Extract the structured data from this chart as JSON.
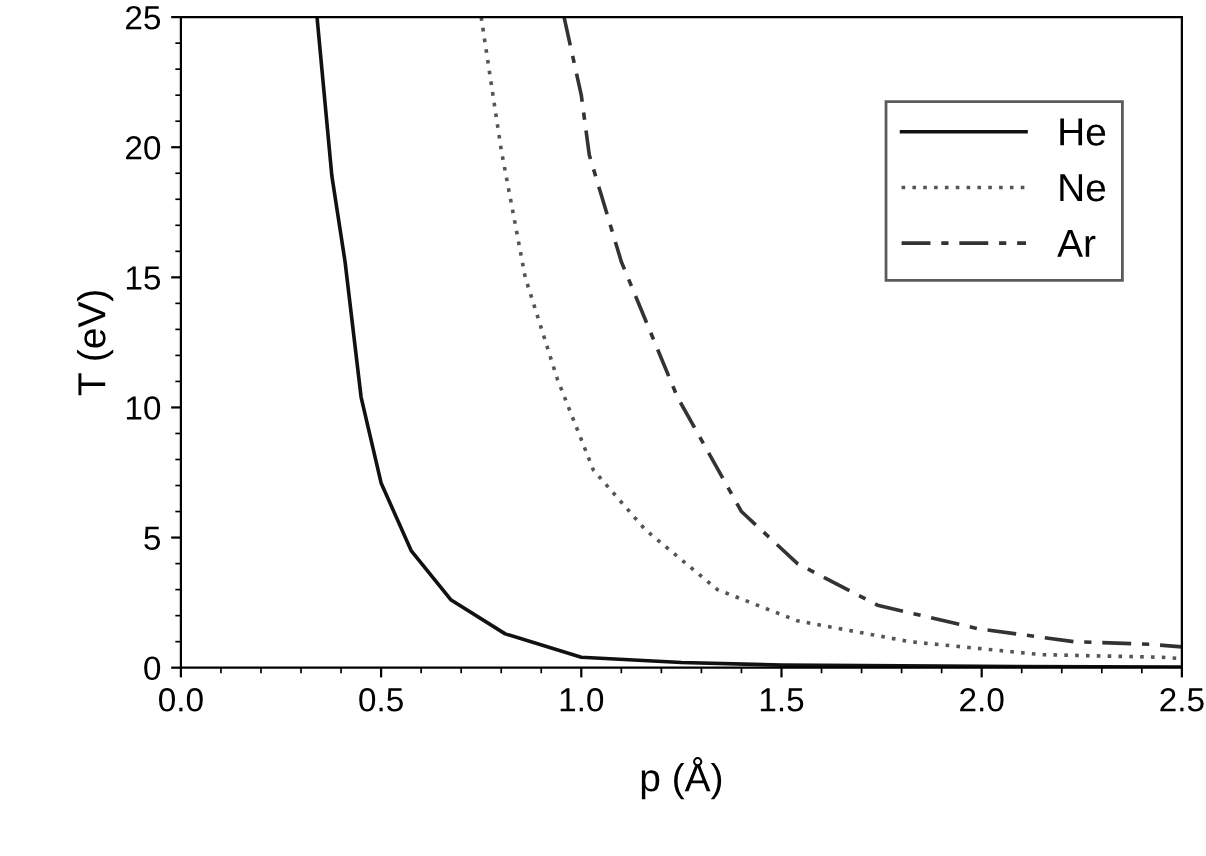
{
  "chart_data": {
    "type": "line",
    "xlabel": "p (Å)",
    "ylabel": "T (eV)",
    "xlim": [
      0,
      2.5
    ],
    "ylim": [
      0,
      25
    ],
    "xticks": [
      {
        "value": 0,
        "label": "0.0"
      },
      0.5,
      {
        "value": 1,
        "label": "1.0"
      },
      1.5,
      {
        "value": 2,
        "label": "2.0"
      },
      2.5
    ],
    "yticks": [
      0,
      5,
      10,
      15,
      20,
      25
    ],
    "grid": false,
    "legend": "top right",
    "marker": "none",
    "series": [
      {
        "name": "He",
        "color": "#111111",
        "line_style": "solid",
        "x": [
          0.34,
          0.377,
          0.41,
          0.45,
          0.5,
          0.575,
          0.675,
          0.81,
          1.0,
          1.25,
          1.5,
          2.0,
          2.5
        ],
        "values": [
          25,
          18.9,
          15.6,
          10.4,
          7.1,
          4.5,
          2.6,
          1.3,
          0.4,
          0.2,
          0.1,
          0.05,
          0.02
        ]
      },
      {
        "name": "Ne",
        "color": "#555555",
        "line_style": "dotted",
        "x": [
          0.75,
          0.8,
          0.86,
          0.94,
          1.03,
          1.16,
          1.34,
          1.54,
          1.82,
          2.15,
          2.45,
          2.5
        ],
        "values": [
          25,
          19.9,
          15.0,
          11.1,
          7.6,
          5.3,
          3.0,
          1.8,
          1.0,
          0.5,
          0.4,
          0.35
        ]
      },
      {
        "name": "Ar",
        "color": "#333333",
        "line_style": "dashed",
        "x": [
          0.957,
          1.0,
          1.02,
          1.1,
          1.24,
          1.4,
          1.54,
          1.74,
          1.99,
          2.23,
          2.42,
          2.5
        ],
        "values": [
          25,
          22.0,
          19.7,
          15.6,
          10.4,
          6.0,
          4.0,
          2.4,
          1.5,
          1.0,
          0.9,
          0.8
        ]
      }
    ]
  }
}
